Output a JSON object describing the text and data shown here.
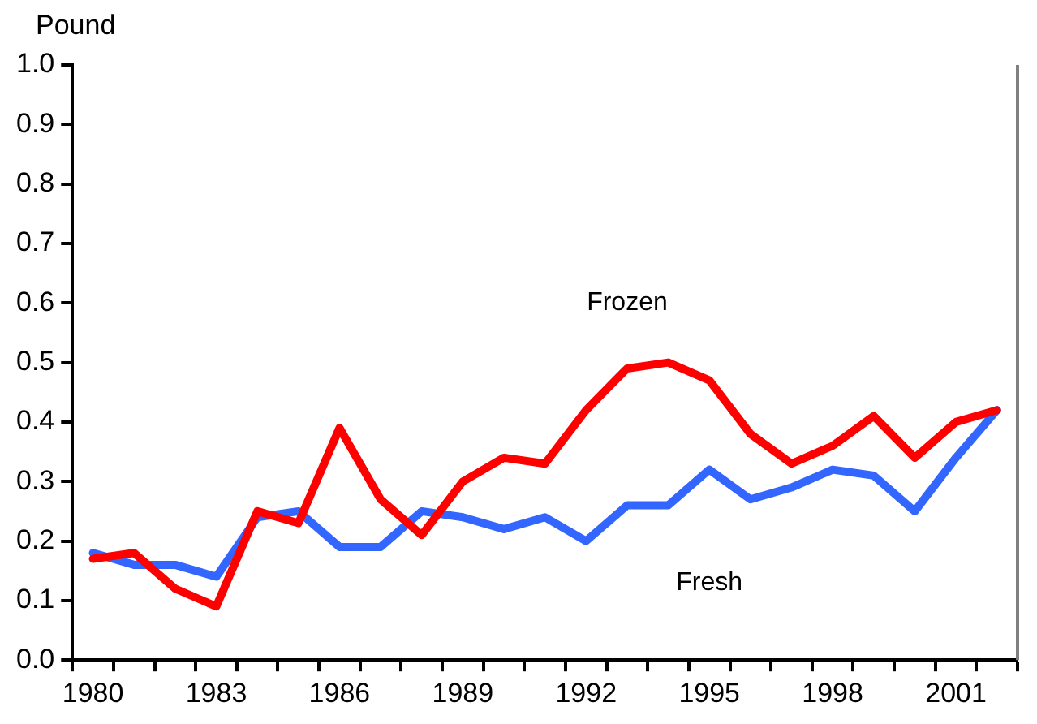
{
  "chart_data": {
    "type": "line",
    "ylabel": "Pound",
    "categories": [
      "1980",
      null,
      null,
      "1983",
      null,
      null,
      "1986",
      null,
      null,
      "1989",
      null,
      null,
      "1992",
      null,
      null,
      "1995",
      null,
      null,
      "1998",
      null,
      null,
      "2001",
      null
    ],
    "series": [
      {
        "name": "Frozen",
        "color": "#ff0000",
        "values": [
          0.17,
          0.18,
          0.12,
          0.09,
          0.25,
          0.23,
          0.39,
          0.27,
          0.21,
          0.3,
          0.34,
          0.33,
          0.42,
          0.49,
          0.5,
          0.47,
          0.38,
          0.33,
          0.36,
          0.41,
          0.34,
          0.4,
          0.42
        ]
      },
      {
        "name": "Fresh",
        "color": "#3366ff",
        "values": [
          0.18,
          0.16,
          0.16,
          0.14,
          0.24,
          0.25,
          0.19,
          0.19,
          0.25,
          0.24,
          0.22,
          0.24,
          0.2,
          0.26,
          0.26,
          0.32,
          0.27,
          0.29,
          0.32,
          0.31,
          0.25,
          0.34,
          0.42
        ]
      }
    ],
    "ylim": [
      0,
      1
    ],
    "yticks": [
      {
        "value": 0,
        "label": "0.0"
      },
      0.1,
      0.2,
      0.3,
      0.4,
      0.5,
      0.6,
      0.7,
      0.8,
      0.9,
      {
        "value": 1,
        "label": "1.0"
      }
    ],
    "grid": false,
    "legend": false,
    "marker": "none",
    "line_style": "solid"
  }
}
